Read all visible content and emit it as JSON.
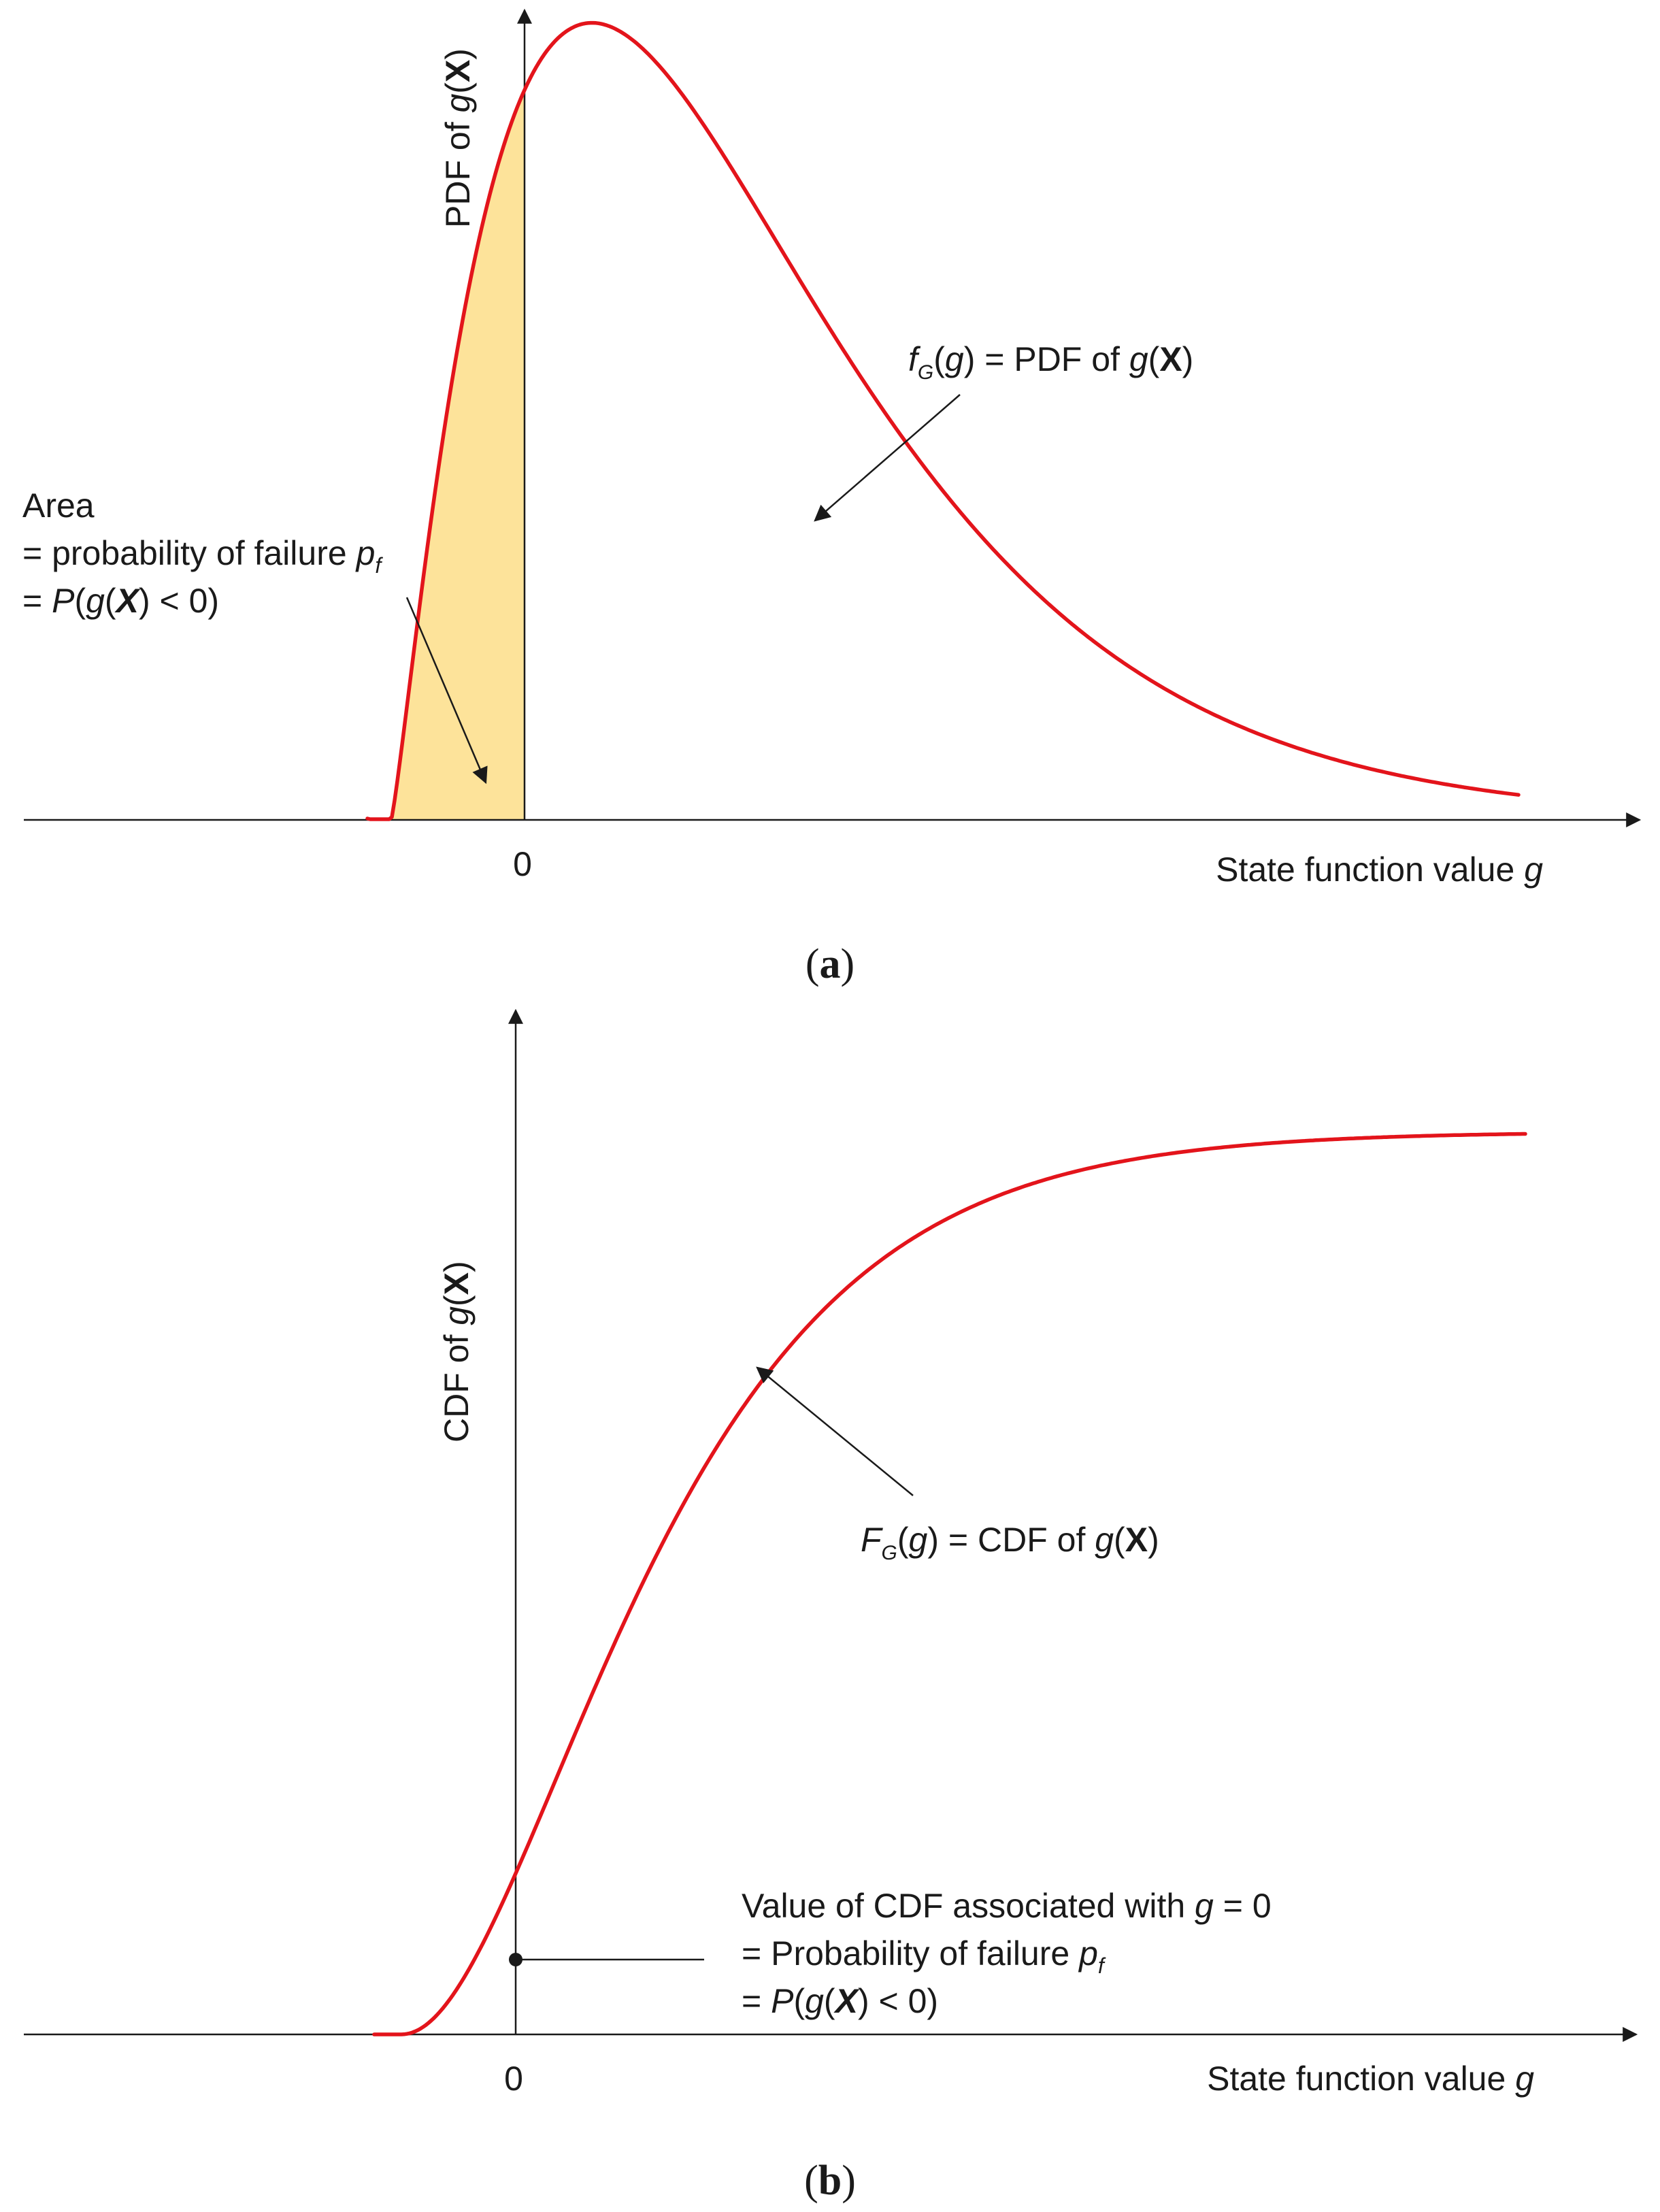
{
  "panel_a": {
    "y_label": {
      "pre": "PDF of ",
      "var": "g",
      "open": "(",
      "bold": "X",
      "close": ")"
    },
    "zero_tick": "0",
    "x_label": {
      "pre": "State function value ",
      "var": "g"
    },
    "curve_label": {
      "f": "f",
      "sub": "G",
      "open": "(",
      "g": "g",
      "mid": ") = PDF of ",
      "g2": "g",
      "open2": "(",
      "bold": "X",
      "close": ")"
    },
    "area_label": {
      "line1": "Area",
      "line2_pre": "= probability of failure ",
      "line2_var": "p",
      "line2_sub": "f",
      "line3_pre": "= ",
      "line3_P": "P",
      "line3_open": "(",
      "line3_g": "g",
      "line3_open2": "(",
      "line3_bold": "X",
      "line3_close": ") < 0)"
    },
    "caption": {
      "open": "(",
      "letter": "a",
      "close": ")"
    }
  },
  "panel_b": {
    "y_label": {
      "pre": "CDF of ",
      "var": "g",
      "open": "(",
      "bold": "X",
      "close": ")"
    },
    "zero_tick": "0",
    "x_label": {
      "pre": "State function value ",
      "var": "g"
    },
    "curve_label": {
      "F": "F",
      "sub": "G",
      "open": "(",
      "g": "g",
      "mid": ") = CDF of ",
      "g2": "g",
      "open2": "(",
      "bold": "X",
      "close": ")"
    },
    "point_label": {
      "line1_pre": "Value of CDF associated with ",
      "line1_var": "g",
      "line1_post": " = 0",
      "line2_pre": "= Probability of failure ",
      "line2_var": "p",
      "line2_sub": "f",
      "line3_pre": "= ",
      "line3_P": "P",
      "line3_open": "(",
      "line3_g": "g",
      "line3_open2": "(",
      "line3_bold": "X",
      "line3_close": ") < 0)"
    },
    "caption": {
      "open": "(",
      "letter": "b",
      "close": ")"
    }
  },
  "colors": {
    "curve": "#e3141b",
    "failure_area": "#fde39a",
    "axis": "#1a1a1a"
  }
}
